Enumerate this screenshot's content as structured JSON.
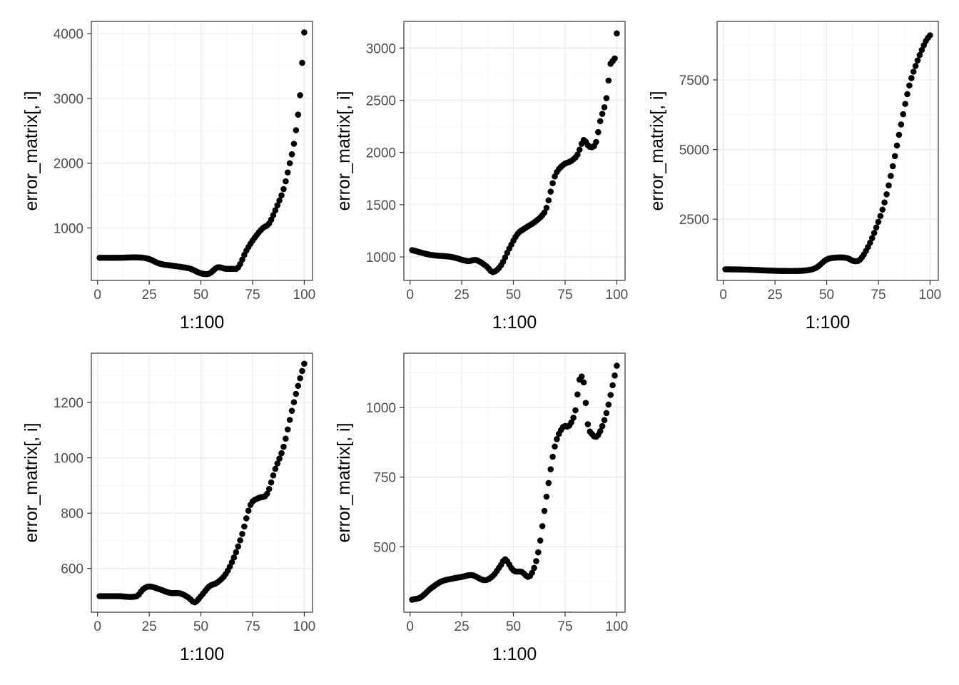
{
  "chart_data": [
    {
      "type": "scatter",
      "xlabel": "1:100",
      "ylabel": "error_matrix[, i]",
      "xlim": [
        -3,
        104
      ],
      "ylim": [
        190,
        4190
      ],
      "xticks": [
        0,
        25,
        50,
        75,
        100
      ],
      "yticks": [
        1000,
        2000,
        3000,
        4000
      ],
      "grid": true,
      "point_color": "#000000",
      "knots": [
        [
          1,
          540
        ],
        [
          10,
          540
        ],
        [
          20,
          545
        ],
        [
          25,
          520
        ],
        [
          30,
          450
        ],
        [
          40,
          400
        ],
        [
          45,
          370
        ],
        [
          50,
          300
        ],
        [
          54,
          295
        ],
        [
          58,
          390
        ],
        [
          62,
          370
        ],
        [
          65,
          370
        ],
        [
          68,
          390
        ],
        [
          72,
          650
        ],
        [
          76,
          850
        ],
        [
          80,
          1000
        ],
        [
          83,
          1070
        ],
        [
          87,
          1350
        ],
        [
          90,
          1600
        ],
        [
          93,
          2000
        ],
        [
          95,
          2300
        ],
        [
          97,
          2750
        ],
        [
          98,
          3050
        ],
        [
          99,
          3550
        ],
        [
          100,
          4020
        ]
      ]
    },
    {
      "type": "scatter",
      "xlabel": "1:100",
      "ylabel": "error_matrix[, i]",
      "xlim": [
        -3,
        104
      ],
      "ylim": [
        775,
        3255
      ],
      "xticks": [
        0,
        25,
        50,
        75,
        100
      ],
      "yticks": [
        1000,
        1500,
        2000,
        2500,
        3000
      ],
      "grid": true,
      "point_color": "#000000",
      "knots": [
        [
          1,
          1065
        ],
        [
          10,
          1020
        ],
        [
          20,
          1000
        ],
        [
          28,
          960
        ],
        [
          32,
          970
        ],
        [
          37,
          910
        ],
        [
          40,
          855
        ],
        [
          44,
          920
        ],
        [
          48,
          1080
        ],
        [
          52,
          1220
        ],
        [
          56,
          1280
        ],
        [
          60,
          1330
        ],
        [
          64,
          1400
        ],
        [
          66,
          1470
        ],
        [
          70,
          1770
        ],
        [
          74,
          1880
        ],
        [
          78,
          1920
        ],
        [
          81,
          1980
        ],
        [
          84,
          2120
        ],
        [
          86,
          2070
        ],
        [
          88,
          2050
        ],
        [
          90,
          2100
        ],
        [
          92,
          2300
        ],
        [
          95,
          2520
        ],
        [
          97,
          2850
        ],
        [
          99,
          2900
        ],
        [
          100,
          3140
        ]
      ]
    },
    {
      "type": "scatter",
      "xlabel": "1:100",
      "ylabel": "error_matrix[, i]",
      "xlim": [
        -3,
        104
      ],
      "ylim": [
        300,
        9600
      ],
      "xticks": [
        0,
        25,
        50,
        75,
        100
      ],
      "yticks": [
        2500,
        5000,
        7500
      ],
      "grid": true,
      "point_color": "#000000",
      "knots": [
        [
          1,
          700
        ],
        [
          10,
          690
        ],
        [
          20,
          660
        ],
        [
          30,
          640
        ],
        [
          40,
          660
        ],
        [
          45,
          760
        ],
        [
          50,
          1050
        ],
        [
          55,
          1120
        ],
        [
          60,
          1100
        ],
        [
          63,
          1000
        ],
        [
          66,
          1040
        ],
        [
          70,
          1500
        ],
        [
          74,
          2200
        ],
        [
          78,
          3100
        ],
        [
          82,
          4400
        ],
        [
          86,
          5900
        ],
        [
          90,
          7300
        ],
        [
          94,
          8200
        ],
        [
          98,
          8900
        ],
        [
          100,
          9100
        ]
      ]
    },
    {
      "type": "scatter",
      "xlabel": "1:100",
      "ylabel": "error_matrix[, i]",
      "xlim": [
        -3,
        104
      ],
      "ylim": [
        442,
        1378
      ],
      "xticks": [
        0,
        25,
        50,
        75,
        100
      ],
      "yticks": [
        600,
        800,
        1000,
        1200
      ],
      "grid": true,
      "point_color": "#000000",
      "knots": [
        [
          1,
          500
        ],
        [
          10,
          500
        ],
        [
          19,
          500
        ],
        [
          22,
          525
        ],
        [
          25,
          535
        ],
        [
          30,
          525
        ],
        [
          35,
          512
        ],
        [
          40,
          510
        ],
        [
          44,
          495
        ],
        [
          47,
          478
        ],
        [
          50,
          500
        ],
        [
          54,
          535
        ],
        [
          58,
          550
        ],
        [
          62,
          580
        ],
        [
          66,
          640
        ],
        [
          70,
          725
        ],
        [
          74,
          830
        ],
        [
          78,
          855
        ],
        [
          82,
          870
        ],
        [
          86,
          960
        ],
        [
          90,
          1040
        ],
        [
          94,
          1170
        ],
        [
          97,
          1260
        ],
        [
          100,
          1340
        ]
      ]
    },
    {
      "type": "scatter",
      "xlabel": "1:100",
      "ylabel": "error_matrix[, i]",
      "xlim": [
        -3,
        104
      ],
      "ylim": [
        265,
        1195
      ],
      "xticks": [
        0,
        25,
        50,
        75,
        100
      ],
      "yticks": [
        500,
        750,
        1000
      ],
      "grid": true,
      "point_color": "#000000",
      "knots": [
        [
          1,
          310
        ],
        [
          5,
          318
        ],
        [
          10,
          350
        ],
        [
          15,
          375
        ],
        [
          20,
          385
        ],
        [
          25,
          392
        ],
        [
          30,
          398
        ],
        [
          36,
          380
        ],
        [
          40,
          395
        ],
        [
          44,
          435
        ],
        [
          46,
          455
        ],
        [
          50,
          415
        ],
        [
          54,
          410
        ],
        [
          58,
          395
        ],
        [
          62,
          480
        ],
        [
          66,
          680
        ],
        [
          70,
          860
        ],
        [
          74,
          930
        ],
        [
          77,
          935
        ],
        [
          80,
          990
        ],
        [
          82,
          1100
        ],
        [
          84,
          1090
        ],
        [
          86,
          940
        ],
        [
          88,
          905
        ],
        [
          90,
          895
        ],
        [
          92,
          915
        ],
        [
          95,
          980
        ],
        [
          98,
          1080
        ],
        [
          100,
          1150
        ]
      ]
    }
  ]
}
